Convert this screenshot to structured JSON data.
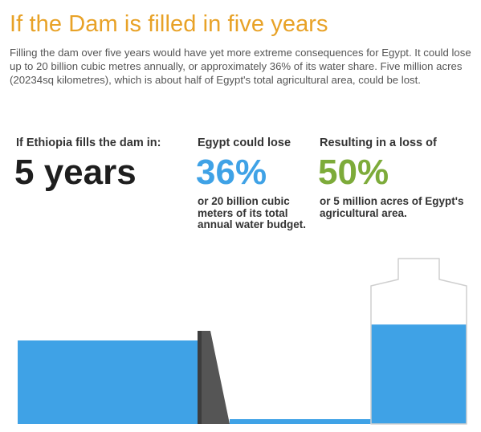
{
  "title": "If the Dam is filled in five years",
  "intro": "Filling the dam over five years would have yet more extreme consequences for Egypt. It could lose up to 20 billion cubic metres annually, or approximately 36% of its water share. Five million acres (20234sq kilometres), which is about half of Egypt's total agricultural area, could be lost.",
  "columns": [
    {
      "label": "If Ethiopia fills the dam in:",
      "value": "5 years",
      "note": ""
    },
    {
      "label": "Egypt could lose",
      "value": "36%",
      "note": "or 20 billion cubic meters of its total annual water budget."
    },
    {
      "label": "Resulting in a loss of",
      "value": "50%",
      "note": "or 5 million acres of Egypt's agricultural area."
    }
  ],
  "bottle_fill_fraction": 0.72,
  "colors": {
    "title": "#e8a227",
    "water": "#3fa2e6",
    "dam": "#555555",
    "value_dark": "#1e1e1e",
    "value_blue": "#3fa2e6",
    "value_green": "#7dab3a"
  }
}
